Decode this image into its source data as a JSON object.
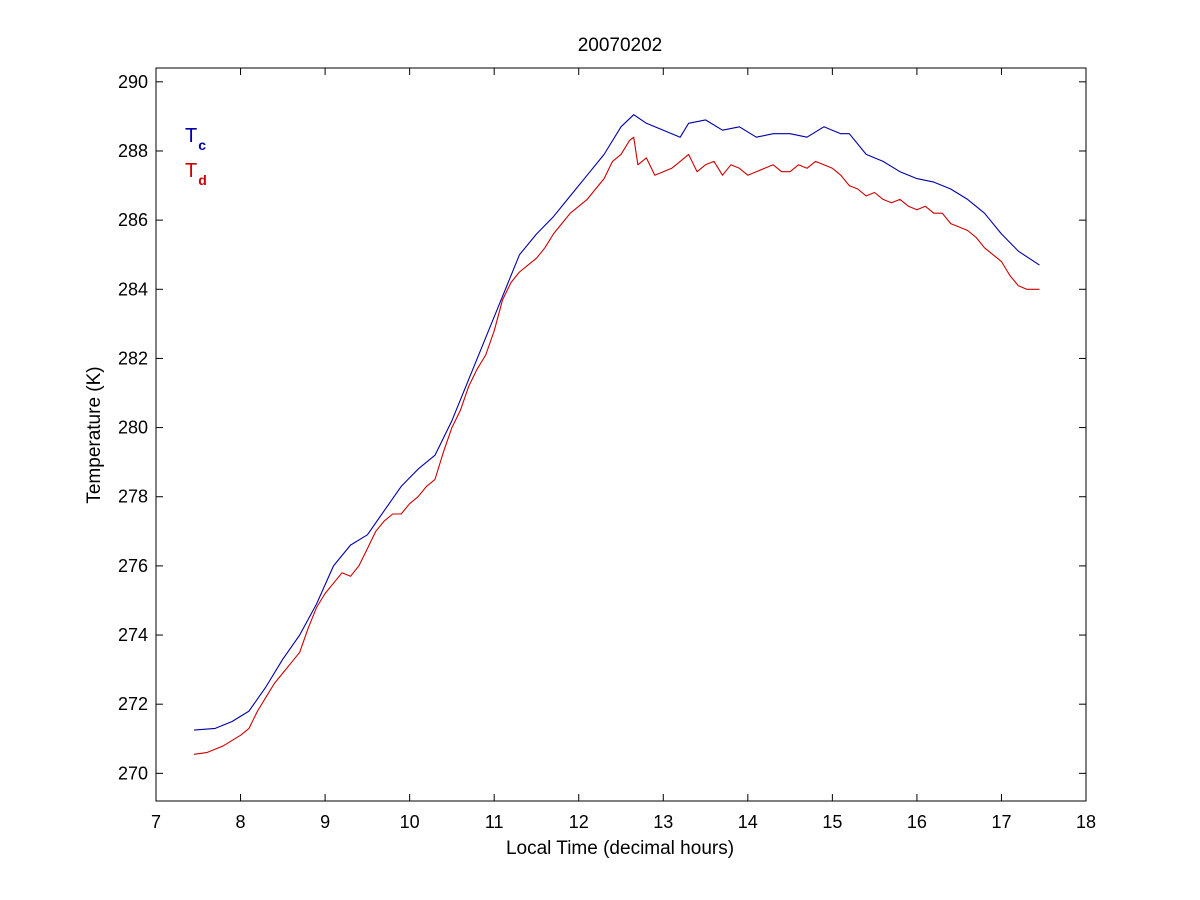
{
  "chart_data": {
    "type": "line",
    "title": "20070202",
    "xlabel": "Local Time (decimal hours)",
    "ylabel": "Temperature (K)",
    "xlim": [
      7,
      18
    ],
    "ylim": [
      269.2,
      290.4
    ],
    "xticks": [
      7,
      8,
      9,
      10,
      11,
      12,
      13,
      14,
      15,
      16,
      17,
      18
    ],
    "yticks": [
      270,
      272,
      274,
      276,
      278,
      280,
      282,
      284,
      286,
      288,
      290
    ],
    "grid": false,
    "legend_position": "top-left",
    "series": [
      {
        "name": "T",
        "subscript": "c",
        "color": "#0000a8",
        "x": [
          7.45,
          7.7,
          7.9,
          8.1,
          8.3,
          8.5,
          8.7,
          8.9,
          9.1,
          9.3,
          9.5,
          9.7,
          9.9,
          10.1,
          10.3,
          10.5,
          10.7,
          10.9,
          11.1,
          11.3,
          11.5,
          11.7,
          11.9,
          12.1,
          12.3,
          12.5,
          12.65,
          12.8,
          13.0,
          13.2,
          13.3,
          13.5,
          13.7,
          13.9,
          14.1,
          14.3,
          14.5,
          14.7,
          14.9,
          15.1,
          15.2,
          15.4,
          15.6,
          15.8,
          16.0,
          16.2,
          16.4,
          16.6,
          16.8,
          17.0,
          17.2,
          17.45
        ],
        "y": [
          271.25,
          271.3,
          271.5,
          271.8,
          272.5,
          273.3,
          274.0,
          274.9,
          276.0,
          276.6,
          276.9,
          277.6,
          278.3,
          278.8,
          279.2,
          280.2,
          281.4,
          282.6,
          283.8,
          285.0,
          285.6,
          286.1,
          286.7,
          287.3,
          287.9,
          288.7,
          289.05,
          288.8,
          288.6,
          288.4,
          288.8,
          288.9,
          288.6,
          288.7,
          288.4,
          288.5,
          288.5,
          288.4,
          288.7,
          288.5,
          288.5,
          287.9,
          287.7,
          287.4,
          287.2,
          287.1,
          286.9,
          286.6,
          286.2,
          285.6,
          285.1,
          284.7
        ]
      },
      {
        "name": "T",
        "subscript": "d",
        "color": "#cc0000",
        "x": [
          7.45,
          7.6,
          7.8,
          8.0,
          8.1,
          8.2,
          8.3,
          8.4,
          8.5,
          8.6,
          8.7,
          8.8,
          8.9,
          9.0,
          9.1,
          9.2,
          9.3,
          9.4,
          9.5,
          9.6,
          9.7,
          9.8,
          9.9,
          10.0,
          10.1,
          10.2,
          10.3,
          10.4,
          10.5,
          10.6,
          10.7,
          10.8,
          10.9,
          11.0,
          11.1,
          11.2,
          11.3,
          11.4,
          11.5,
          11.6,
          11.7,
          11.8,
          11.9,
          12.0,
          12.1,
          12.2,
          12.3,
          12.4,
          12.5,
          12.6,
          12.65,
          12.7,
          12.8,
          12.9,
          13.0,
          13.1,
          13.2,
          13.3,
          13.4,
          13.5,
          13.6,
          13.7,
          13.8,
          13.9,
          14.0,
          14.1,
          14.2,
          14.3,
          14.4,
          14.5,
          14.6,
          14.7,
          14.8,
          14.9,
          15.0,
          15.1,
          15.2,
          15.3,
          15.4,
          15.5,
          15.6,
          15.7,
          15.8,
          15.9,
          16.0,
          16.1,
          16.2,
          16.3,
          16.4,
          16.5,
          16.6,
          16.7,
          16.8,
          16.9,
          17.0,
          17.1,
          17.2,
          17.3,
          17.45
        ],
        "y": [
          270.55,
          270.6,
          270.8,
          271.1,
          271.3,
          271.8,
          272.2,
          272.6,
          272.9,
          273.2,
          273.5,
          274.2,
          274.8,
          275.2,
          275.5,
          275.8,
          275.7,
          276.0,
          276.5,
          277.0,
          277.3,
          277.5,
          277.5,
          277.8,
          278.0,
          278.3,
          278.5,
          279.3,
          280.0,
          280.5,
          281.2,
          281.7,
          282.1,
          282.8,
          283.7,
          284.2,
          284.5,
          284.7,
          284.9,
          285.2,
          285.6,
          285.9,
          286.2,
          286.4,
          286.6,
          286.9,
          287.2,
          287.7,
          287.9,
          288.3,
          288.4,
          287.6,
          287.8,
          287.3,
          287.4,
          287.5,
          287.7,
          287.9,
          287.4,
          287.6,
          287.7,
          287.3,
          287.6,
          287.5,
          287.3,
          287.4,
          287.5,
          287.6,
          287.4,
          287.4,
          287.6,
          287.5,
          287.7,
          287.6,
          287.5,
          287.3,
          287.0,
          286.9,
          286.7,
          286.8,
          286.6,
          286.5,
          286.6,
          286.4,
          286.3,
          286.4,
          286.2,
          286.2,
          285.9,
          285.8,
          285.7,
          285.5,
          285.2,
          285.0,
          284.8,
          284.4,
          284.1,
          284.0,
          284.0
        ]
      }
    ]
  }
}
